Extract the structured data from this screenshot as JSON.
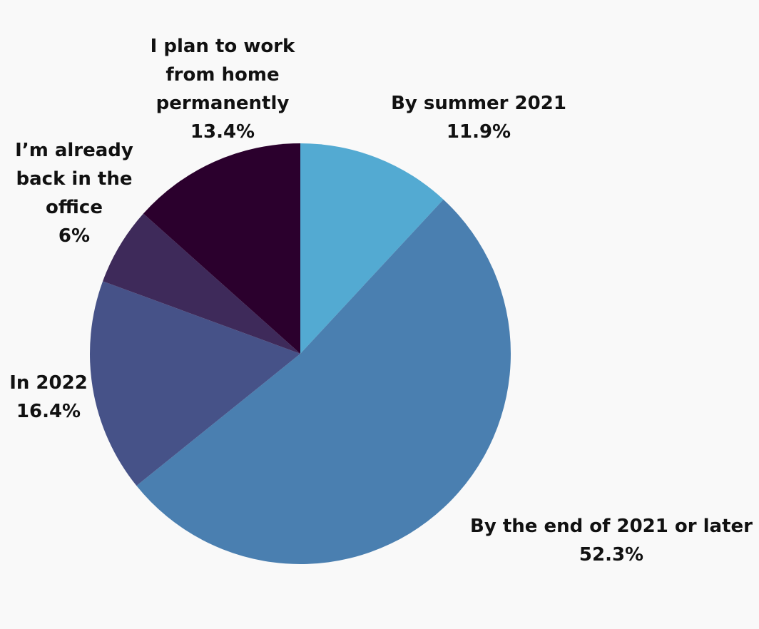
{
  "chart_data": {
    "type": "pie",
    "categories": [
      "By summer 2021",
      "By the end of 2021 or later",
      "In 2022",
      "I’m already back in the office",
      "I plan to work from home permanently"
    ],
    "values": [
      11.9,
      52.3,
      16.4,
      6,
      13.4
    ],
    "value_labels": [
      "11.9%",
      "52.3%",
      "16.4%",
      "6%",
      "13.4%"
    ],
    "colors": [
      "#53aad2",
      "#4a7fb0",
      "#465288",
      "#3e2a5a",
      "#2b002d"
    ]
  }
}
